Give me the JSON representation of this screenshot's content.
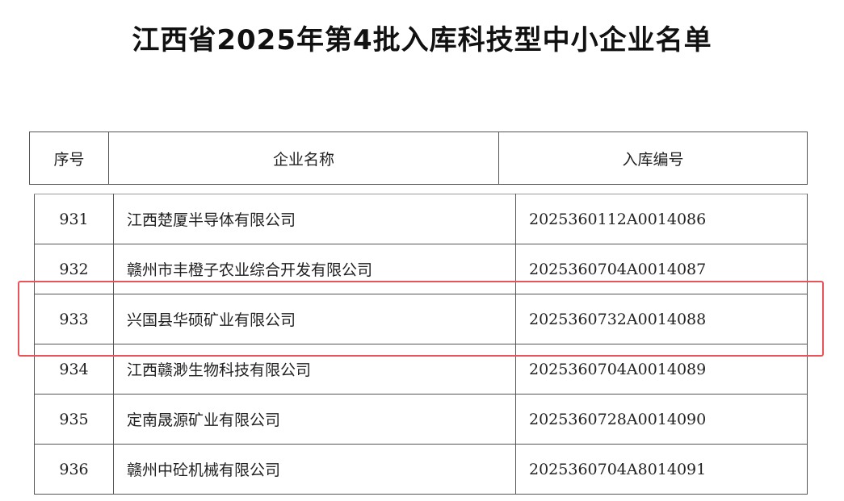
{
  "title": "江西省2025年第4批入库科技型中小企业名单",
  "columns": [
    "序号",
    "企业名称",
    "入库编号"
  ],
  "rows": [
    [
      "931",
      "江西楚厦半导体有限公司",
      "2025360112A0014086"
    ],
    [
      "932",
      "赣州市丰橙子农业综合开发有限公司",
      "2025360704A0014087"
    ],
    [
      "933",
      "兴国县华硕矿业有限公司",
      "2025360732A0014088"
    ],
    [
      "934",
      "江西赣渺生物科技有限公司",
      "2025360704A0014089"
    ],
    [
      "935",
      "定南晟源矿业有限公司",
      "2025360728A0014090"
    ],
    [
      "936",
      "赣州中砼机械有限公司",
      "2025360704A8014091"
    ]
  ],
  "highlight_color": "#e8545a",
  "highlighted_row": "933"
}
